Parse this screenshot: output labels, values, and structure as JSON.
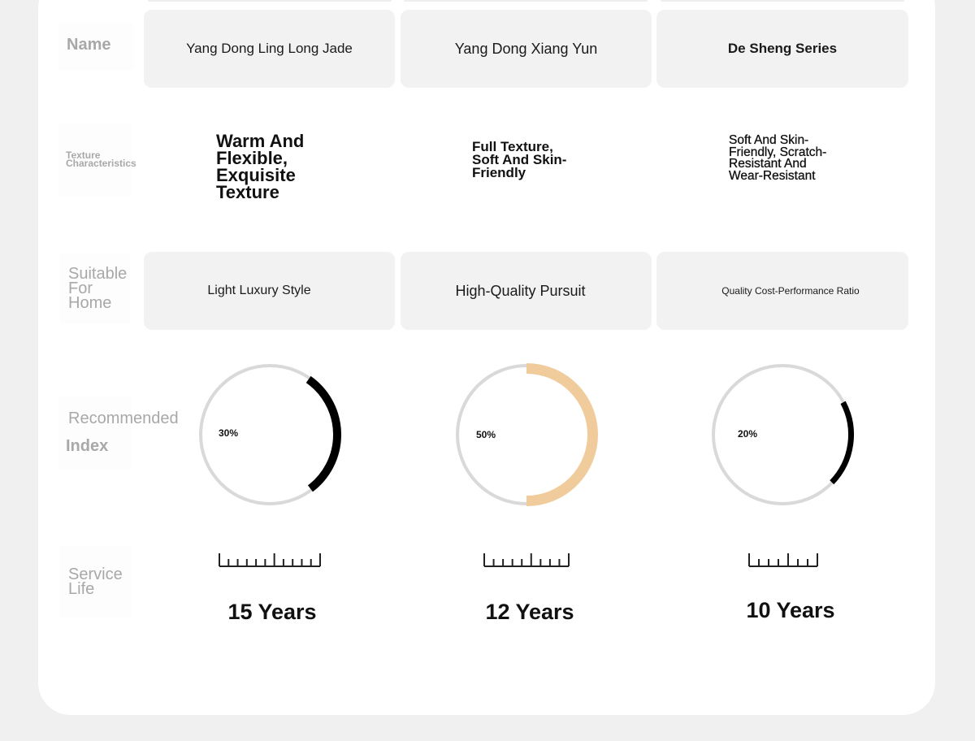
{
  "labels": {
    "name": "Name",
    "texture": "Texture Characteristics",
    "suitable": "Suitable For Home",
    "index_1": "Recommended",
    "index_2": "Index",
    "service": "Service Life"
  },
  "products": [
    {
      "name": "Yang Dong Ling Long Jade",
      "texture": "Warm And Flexible, Exquisite Texture",
      "suitable": "Light Luxury Style",
      "index": 30,
      "index_label": "30%",
      "index_color": "#000000",
      "service_life": "15 Years"
    },
    {
      "name": "Yang Dong Xiang Yun",
      "texture": "Full Texture, Soft And Skin-Friendly",
      "suitable": "High-Quality Pursuit",
      "index": 50,
      "index_label": "50%",
      "index_color": "#f0cc9c",
      "service_life": "12 Years"
    },
    {
      "name": "De Sheng Series",
      "texture": "Soft And Skin-Friendly, Scratch-Resistant And Wear-Resistant",
      "suitable": "Quality Cost-Performance Ratio",
      "index": 20,
      "index_label": "20%",
      "index_color": "#000000",
      "service_life": "10 Years"
    }
  ],
  "colors": {
    "track": "#d9d9d9",
    "box": "#f2f2f2",
    "label": "#a8a8a8"
  }
}
